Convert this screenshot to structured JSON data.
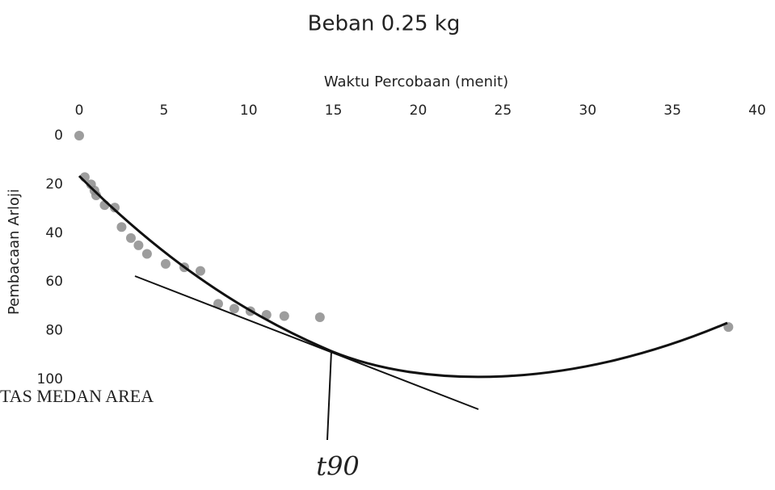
{
  "chart_data": {
    "type": "scatter",
    "title": "Beban 0.25 kg",
    "x_label": "Waktu Percobaan (menit)",
    "y_label": "Pembacaan Arloji",
    "annotation": "t90",
    "watermark": "TAS MEDAN AREA",
    "x": [
      0,
      0.33,
      0.7,
      0.9,
      1.0,
      1.5,
      2.1,
      2.5,
      3.05,
      3.5,
      4,
      5.1,
      6.2,
      7.15,
      8.2,
      9.15,
      10.1,
      11.05,
      12.1,
      14.2,
      38.3
    ],
    "values": [
      0,
      17,
      20,
      22.5,
      24.5,
      28.5,
      29.5,
      37.5,
      42,
      45,
      48.5,
      52.6,
      54,
      55.5,
      69,
      71,
      72,
      73.5,
      74,
      74.5,
      78.5
    ],
    "color": "#8c8c8c",
    "xlim": [
      0,
      40
    ],
    "xticks": [
      0,
      5,
      10,
      15,
      20,
      25,
      30,
      35,
      40
    ],
    "ylim": [
      0,
      100
    ],
    "yticks": [
      0,
      20,
      40,
      60,
      80,
      100
    ],
    "y_inverted": true,
    "x_axis_position": "top",
    "grid": false
  }
}
